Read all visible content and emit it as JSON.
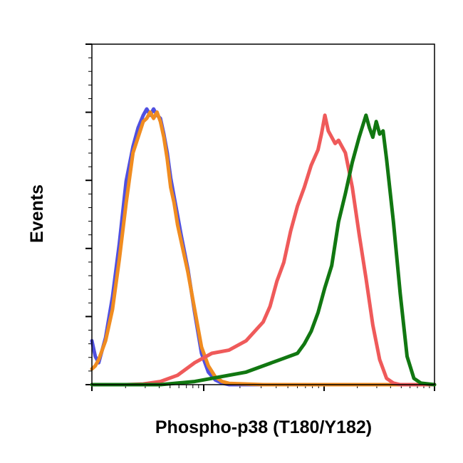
{
  "chart_data": {
    "type": "line",
    "title": "",
    "xlabel": "Phospho-p38 (T180/Y182)",
    "ylabel": "Events",
    "x_scale": "log",
    "xlim": [
      0,
      1
    ],
    "ylim": [
      0,
      1
    ],
    "grid": false,
    "legend": "none",
    "series": [
      {
        "color": "#5050e0",
        "x": [
          0.0,
          0.01,
          0.02,
          0.04,
          0.06,
          0.08,
          0.1,
          0.12,
          0.135,
          0.15,
          0.16,
          0.17,
          0.18,
          0.19,
          0.2,
          0.21,
          0.22,
          0.23,
          0.24,
          0.25,
          0.26,
          0.28,
          0.3,
          0.32,
          0.34,
          0.36,
          0.38,
          0.4,
          1.0
        ],
        "y": [
          0.14,
          0.09,
          0.07,
          0.15,
          0.28,
          0.45,
          0.65,
          0.76,
          0.82,
          0.86,
          0.88,
          0.86,
          0.88,
          0.86,
          0.85,
          0.8,
          0.74,
          0.66,
          0.6,
          0.54,
          0.48,
          0.37,
          0.23,
          0.1,
          0.04,
          0.015,
          0.005,
          0.0,
          0.0
        ]
      },
      {
        "color": "#f08c20",
        "x": [
          0.0,
          0.01,
          0.02,
          0.04,
          0.06,
          0.08,
          0.1,
          0.12,
          0.135,
          0.15,
          0.16,
          0.17,
          0.18,
          0.19,
          0.2,
          0.21,
          0.22,
          0.23,
          0.24,
          0.25,
          0.26,
          0.28,
          0.3,
          0.32,
          0.34,
          0.36,
          0.38,
          0.4,
          0.45,
          0.5,
          1.0
        ],
        "y": [
          0.05,
          0.06,
          0.08,
          0.14,
          0.24,
          0.4,
          0.58,
          0.74,
          0.79,
          0.84,
          0.85,
          0.87,
          0.85,
          0.87,
          0.84,
          0.79,
          0.72,
          0.63,
          0.58,
          0.51,
          0.46,
          0.36,
          0.24,
          0.12,
          0.06,
          0.025,
          0.01,
          0.004,
          0.002,
          0.0,
          0.0
        ]
      },
      {
        "color": "#ef5a5a",
        "x": [
          0.0,
          0.1,
          0.15,
          0.2,
          0.25,
          0.3,
          0.35,
          0.4,
          0.45,
          0.5,
          0.52,
          0.54,
          0.56,
          0.58,
          0.6,
          0.62,
          0.64,
          0.66,
          0.67,
          0.68,
          0.69,
          0.7,
          0.71,
          0.72,
          0.74,
          0.76,
          0.78,
          0.8,
          0.82,
          0.84,
          0.86,
          0.88,
          0.9,
          0.92,
          1.0
        ],
        "y": [
          0.0,
          0.0,
          0.002,
          0.01,
          0.03,
          0.07,
          0.1,
          0.11,
          0.14,
          0.2,
          0.25,
          0.33,
          0.39,
          0.49,
          0.57,
          0.63,
          0.7,
          0.75,
          0.8,
          0.86,
          0.81,
          0.79,
          0.77,
          0.78,
          0.74,
          0.63,
          0.48,
          0.34,
          0.19,
          0.08,
          0.02,
          0.005,
          0.0,
          0.0,
          0.0
        ]
      },
      {
        "color": "#117711",
        "x": [
          0.0,
          0.2,
          0.3,
          0.35,
          0.4,
          0.45,
          0.5,
          0.55,
          0.6,
          0.62,
          0.64,
          0.66,
          0.68,
          0.7,
          0.72,
          0.74,
          0.76,
          0.78,
          0.8,
          0.81,
          0.82,
          0.83,
          0.84,
          0.85,
          0.86,
          0.88,
          0.9,
          0.92,
          0.94,
          0.96,
          1.0
        ],
        "y": [
          0.0,
          0.0,
          0.01,
          0.02,
          0.03,
          0.04,
          0.06,
          0.08,
          0.1,
          0.13,
          0.17,
          0.23,
          0.31,
          0.38,
          0.52,
          0.61,
          0.71,
          0.79,
          0.86,
          0.82,
          0.79,
          0.84,
          0.8,
          0.81,
          0.72,
          0.52,
          0.29,
          0.09,
          0.02,
          0.005,
          0.0
        ]
      }
    ]
  }
}
